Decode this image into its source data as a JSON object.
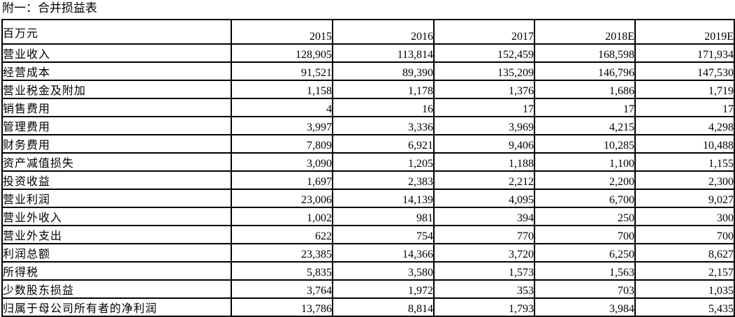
{
  "title": "附一：合并损益表",
  "table": {
    "unit_header": "百万元",
    "columns": [
      "2015",
      "2016",
      "2017",
      "2018E",
      "2019E"
    ],
    "rows": [
      {
        "label": "营业收入",
        "values": [
          "128,905",
          "113,814",
          "152,459",
          "168,598",
          "171,934"
        ]
      },
      {
        "label": "经营成本",
        "values": [
          "91,521",
          "89,390",
          "135,209",
          "146,796",
          "147,530"
        ]
      },
      {
        "label": "营业税金及附加",
        "values": [
          "1,158",
          "1,178",
          "1,376",
          "1,686",
          "1,719"
        ]
      },
      {
        "label": "销售费用",
        "values": [
          "4",
          "16",
          "17",
          "17",
          "17"
        ]
      },
      {
        "label": "管理费用",
        "values": [
          "3,997",
          "3,336",
          "3,969",
          "4,215",
          "4,298"
        ]
      },
      {
        "label": "财务费用",
        "values": [
          "7,809",
          "6,921",
          "9,406",
          "10,285",
          "10,488"
        ]
      },
      {
        "label": "资产减值损失",
        "values": [
          "3,090",
          "1,205",
          "1,188",
          "1,100",
          "1,155"
        ]
      },
      {
        "label": "投资收益",
        "values": [
          "1,697",
          "2,383",
          "2,212",
          "2,200",
          "2,300"
        ]
      },
      {
        "label": "营业利润",
        "values": [
          "23,006",
          "14,139",
          "4,095",
          "6,700",
          "9,027"
        ]
      },
      {
        "label": "营业外收入",
        "values": [
          "1,002",
          "981",
          "394",
          "250",
          "300"
        ]
      },
      {
        "label": "营业外支出",
        "values": [
          "622",
          "754",
          "770",
          "700",
          "700"
        ]
      },
      {
        "label": "利润总额",
        "values": [
          "23,385",
          "14,366",
          "3,720",
          "6,250",
          "8,627"
        ]
      },
      {
        "label": "所得税",
        "values": [
          "5,835",
          "3,580",
          "1,573",
          "1,563",
          "2,157"
        ]
      },
      {
        "label": "少数股东损益",
        "values": [
          "3,764",
          "1,972",
          "353",
          "703",
          "1,035"
        ]
      },
      {
        "label": "归属于母公司所有者的净利润",
        "values": [
          "13,786",
          "8,814",
          "1,793",
          "3,984",
          "5,435"
        ]
      }
    ]
  },
  "colors": {
    "text": "#000000",
    "background": "#ffffff",
    "border": "#000000"
  }
}
